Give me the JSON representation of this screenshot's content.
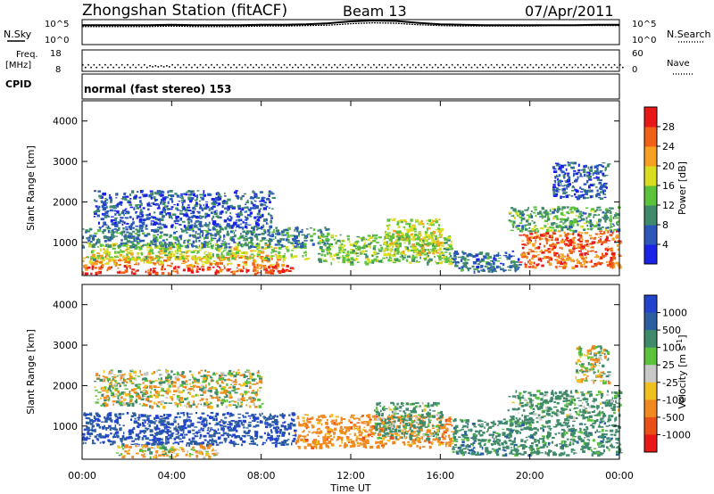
{
  "header": {
    "title": "Zhongshan Station (fitACF)",
    "beam": "Beam 13",
    "date": "07/Apr/2011"
  },
  "top_panels": {
    "nsky_label": "N.Sky",
    "nsearch_label": "N.Search",
    "noise_ticks": [
      "10^5",
      "10^0"
    ],
    "freq_label": "Freq.",
    "freq_unit": "[MHz]",
    "freq_ticks": [
      "18",
      "8"
    ],
    "nave_label": "Nave",
    "nave_ticks": [
      "60",
      "0"
    ],
    "cpid_label": "CPID",
    "cpid_value": "normal (fast stereo) 153"
  },
  "axes": {
    "xlabel": "Time UT",
    "x_ticks": [
      "00:00",
      "04:00",
      "08:00",
      "12:00",
      "16:00",
      "20:00",
      "00:00"
    ],
    "ylabel": "Slant Range [km]",
    "y_ticks": [
      "1000",
      "2000",
      "3000",
      "4000"
    ]
  },
  "colorbars": {
    "power": {
      "label": "Power [dB]",
      "ticks": [
        "4",
        "8",
        "12",
        "16",
        "20",
        "24",
        "28"
      ],
      "colors": [
        "#1a22e8",
        "#2b58b8",
        "#3f8a6a",
        "#5cc23c",
        "#d9dc20",
        "#f5a020",
        "#f06018",
        "#e81818"
      ]
    },
    "velocity": {
      "label": "Velocity [m s",
      "label_sup": "-1",
      "label_end": "]",
      "ticks": [
        "1000",
        "500",
        "100",
        "25",
        "-25",
        "-100",
        "-500",
        "-1000"
      ],
      "colors": [
        "#2244cc",
        "#2a5ea0",
        "#3f8a6a",
        "#5cc23c",
        "#c8c8c8",
        "#f0c020",
        "#f08a20",
        "#e85018",
        "#e81818"
      ]
    }
  },
  "chart_data": [
    {
      "type": "line",
      "title": "",
      "series": [
        {
          "name": "N.Sky",
          "values": [
            4.0,
            4.0,
            4.0,
            4.0,
            4.1,
            4.0,
            4.0,
            4.0,
            4.1,
            4.1,
            4.2,
            4.4,
            4.8,
            5.0,
            4.9,
            4.5,
            4.2,
            4.1,
            4.0,
            4.0,
            4.0,
            4.0,
            4.0,
            4.1,
            4.1
          ]
        },
        {
          "name": "N.Search",
          "values": [
            3.7,
            3.7,
            3.7,
            3.7,
            3.8,
            3.7,
            3.7,
            3.7,
            3.8,
            3.8,
            3.9,
            4.0,
            4.3,
            4.5,
            4.4,
            4.1,
            3.9,
            3.8,
            3.8,
            3.8,
            3.8,
            3.9,
            3.9,
            3.9,
            3.9
          ]
        }
      ],
      "x": [
        0,
        1,
        2,
        3,
        4,
        5,
        6,
        7,
        8,
        9,
        10,
        11,
        12,
        13,
        14,
        15,
        16,
        17,
        18,
        19,
        20,
        21,
        22,
        23,
        24
      ],
      "ylim": [
        0,
        5
      ],
      "xlim": [
        0,
        24
      ]
    },
    {
      "type": "line",
      "series": [
        {
          "name": "Freq.",
          "values": [
            11,
            11,
            11,
            10.5,
            11,
            11,
            11,
            11,
            11,
            11,
            11,
            11,
            11,
            11,
            11,
            11,
            11,
            11,
            11,
            11,
            11,
            11,
            11,
            11,
            11
          ]
        },
        {
          "name": "Nave",
          "values": [
            10,
            10,
            10,
            12,
            10,
            10,
            10,
            10,
            10,
            10,
            10,
            10,
            10,
            10,
            10,
            10,
            10,
            10,
            10,
            10,
            10,
            10,
            10,
            10,
            10
          ]
        }
      ],
      "x": [
        0,
        1,
        2,
        3,
        4,
        5,
        6,
        7,
        8,
        9,
        10,
        11,
        12,
        13,
        14,
        15,
        16,
        17,
        18,
        19,
        20,
        21,
        22,
        23,
        24
      ],
      "xlim": [
        0,
        24
      ]
    },
    {
      "type": "heatmap",
      "name": "Power",
      "xlim": [
        0,
        24
      ],
      "ylim": [
        180,
        4500
      ],
      "xlabel": "Time UT",
      "ylabel": "Slant Range [km]",
      "clim": [
        0,
        30
      ],
      "regions": [
        {
          "t0": 0.0,
          "t1": 9.5,
          "r0": 250,
          "r1": 450,
          "value": 28
        },
        {
          "t0": 0.0,
          "t1": 9.0,
          "r0": 450,
          "r1": 700,
          "value": 22
        },
        {
          "t0": 0.2,
          "t1": 10.0,
          "r0": 600,
          "r1": 1000,
          "value": 16
        },
        {
          "t0": 0.0,
          "t1": 11.0,
          "r0": 900,
          "r1": 1400,
          "value": 9
        },
        {
          "t0": 0.5,
          "t1": 8.5,
          "r0": 1400,
          "r1": 2300,
          "value": 6
        },
        {
          "t0": 10.5,
          "t1": 16.5,
          "r0": 500,
          "r1": 1200,
          "value": 14
        },
        {
          "t0": 13.5,
          "t1": 16.0,
          "r0": 700,
          "r1": 1600,
          "value": 18
        },
        {
          "t0": 16.5,
          "t1": 19.5,
          "r0": 300,
          "r1": 800,
          "value": 8
        },
        {
          "t0": 19.5,
          "t1": 24.0,
          "r0": 400,
          "r1": 1300,
          "value": 26
        },
        {
          "t0": 19.0,
          "t1": 24.0,
          "r0": 1300,
          "r1": 1900,
          "value": 12
        },
        {
          "t0": 21.0,
          "t1": 23.5,
          "r0": 2100,
          "r1": 3000,
          "value": 6
        }
      ]
    },
    {
      "type": "heatmap",
      "name": "Velocity",
      "xlim": [
        0,
        24
      ],
      "ylim": [
        180,
        4500
      ],
      "xlabel": "Time UT",
      "ylabel": "Slant Range [km]",
      "regions": [
        {
          "t0": 0.0,
          "t1": 9.5,
          "r0": 550,
          "r1": 1350,
          "value": 1000
        },
        {
          "t0": 1.5,
          "t1": 6.0,
          "r0": 250,
          "r1": 550,
          "value": -100
        },
        {
          "t0": 0.5,
          "t1": 8.0,
          "r0": 1500,
          "r1": 2400,
          "value": 0
        },
        {
          "t0": 9.5,
          "t1": 16.5,
          "r0": 500,
          "r1": 1300,
          "value": -300
        },
        {
          "t0": 13.0,
          "t1": 16.0,
          "r0": 700,
          "r1": 1600,
          "value": 200
        },
        {
          "t0": 16.5,
          "t1": 24.0,
          "r0": 300,
          "r1": 1200,
          "value": 300
        },
        {
          "t0": 19.0,
          "t1": 24.0,
          "r0": 1200,
          "r1": 1900,
          "value": 200
        },
        {
          "t0": 22.0,
          "t1": 23.5,
          "r0": 2100,
          "r1": 3000,
          "value": 0
        }
      ]
    }
  ]
}
